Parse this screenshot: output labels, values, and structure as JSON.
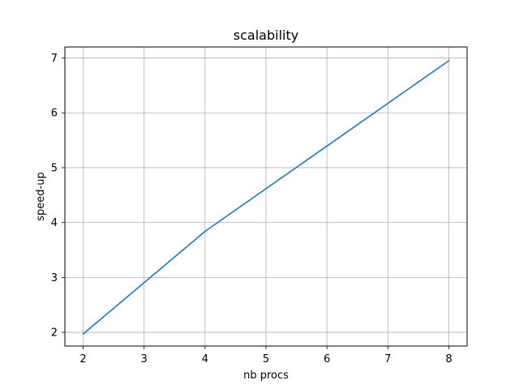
{
  "chart_data": {
    "type": "line",
    "title": "scalability",
    "xlabel": "nb procs",
    "ylabel": "speed-up",
    "xlim": [
      1.7,
      8.3
    ],
    "ylim": [
      1.75,
      7.2
    ],
    "x_ticks": [
      2,
      3,
      4,
      5,
      6,
      7,
      8
    ],
    "y_ticks": [
      2,
      3,
      4,
      5,
      6,
      7
    ],
    "grid": true,
    "series": [
      {
        "x": [
          2,
          4,
          8
        ],
        "values": [
          1.97,
          3.84,
          6.95
        ],
        "color": "#1f77b4"
      }
    ]
  }
}
